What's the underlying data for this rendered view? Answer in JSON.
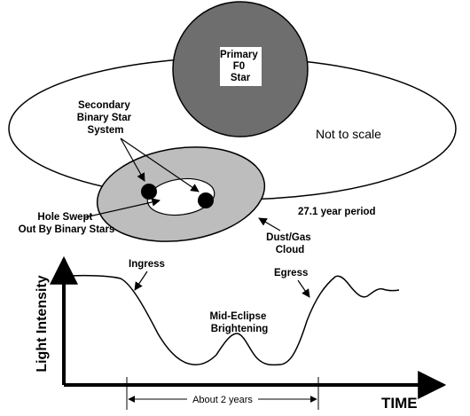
{
  "diagram": {
    "primary_star": {
      "line1": "Primary",
      "line2": "F0",
      "line3": "Star"
    },
    "not_to_scale": "Not to scale",
    "secondary": {
      "line1": "Secondary",
      "line2": "Binary Star",
      "line3": "System"
    },
    "hole": {
      "line1": "Hole Swept",
      "line2": "Out By Binary Stars"
    },
    "period": "27.1 year period",
    "cloud": {
      "line1": "Dust/Gas",
      "line2": "Cloud"
    }
  },
  "light_curve": {
    "ingress": "Ingress",
    "egress": "Egress",
    "mid_eclipse": {
      "line1": "Mid-Eclipse",
      "line2": "Brightening"
    },
    "ylabel": "Light Intensity",
    "xlabel": "TIME",
    "duration": "About 2 years"
  },
  "colors": {
    "primary_star": "#6e6e6e",
    "cloud": "#bdbdbd",
    "stroke": "#000000"
  }
}
